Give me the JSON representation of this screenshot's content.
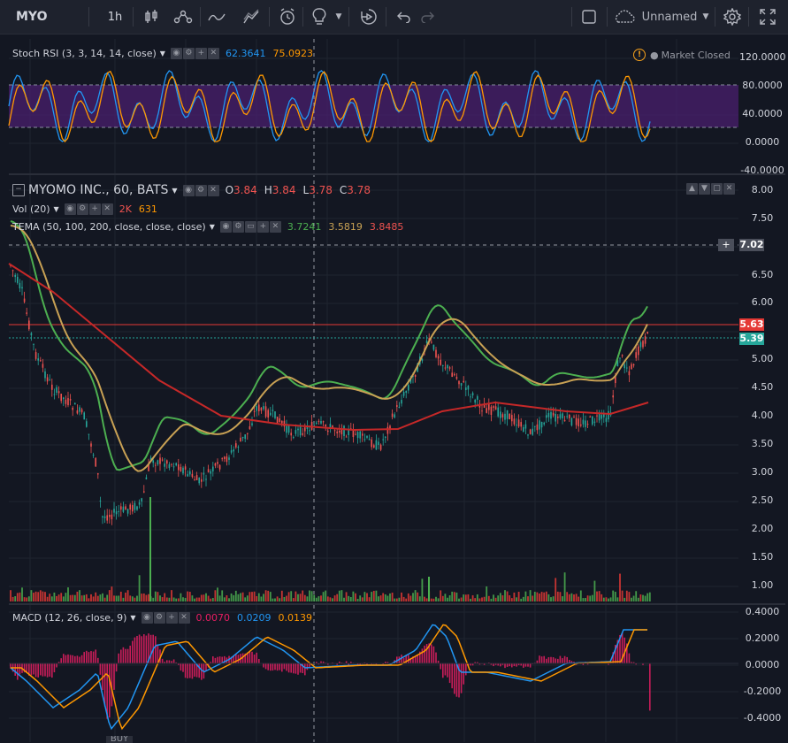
{
  "toolbar": {
    "symbol": "MYO",
    "interval": "1h",
    "layout_name": "Unnamed"
  },
  "colors": {
    "background": "#131722",
    "stoch_k": "#2196f3",
    "stoch_d": "#ff9800",
    "tema_1": "#4caf50",
    "tema_2": "#c8a154",
    "tema_3": "#c62828",
    "up": "#26a69a",
    "down": "#ef5350",
    "stoch_band": "#4a1f6e"
  },
  "stoch_rsi": {
    "title": "Stoch RSI (3, 3, 14, 14, close)",
    "k_value": "62.3641",
    "d_value": "75.0923",
    "market_status": "Market Closed",
    "axis": [
      "120.0000",
      "80.0000",
      "40.0000",
      "0.0000",
      "-40.0000"
    ]
  },
  "main": {
    "title": "MYOMO INC., 60, BATS",
    "ohlc": {
      "o_label": "O",
      "o": "3.84",
      "h_label": "H",
      "h": "3.84",
      "l_label": "L",
      "l": "3.78",
      "c_label": "C",
      "c": "3.78"
    },
    "volume": {
      "title": "Vol (20)",
      "v1": "2K",
      "v2": "631"
    },
    "tema": {
      "title": "TEMA (50, 100, 200, close, close, close)",
      "v1": "3.7241",
      "v2": "3.5819",
      "v3": "3.8485"
    },
    "axis": [
      "8.00",
      "7.50",
      "7.02",
      "6.50",
      "6.00",
      "5.63",
      "5.39",
      "5.00",
      "4.50",
      "4.00",
      "3.50",
      "3.00",
      "2.50",
      "2.00",
      "1.50",
      "1.00"
    ],
    "price_tags": {
      "crosshair": "7.02",
      "red": "5.63",
      "last": "5.39"
    }
  },
  "macd": {
    "title": "MACD (12, 26, close, 9)",
    "hist": "0.0070",
    "macd": "0.0209",
    "signal": "0.0139",
    "axis": [
      "0.4000",
      "0.2000",
      "0.0000",
      "-0.2000",
      "-0.4000"
    ]
  },
  "bottom": {
    "buy_label": "BUY"
  }
}
